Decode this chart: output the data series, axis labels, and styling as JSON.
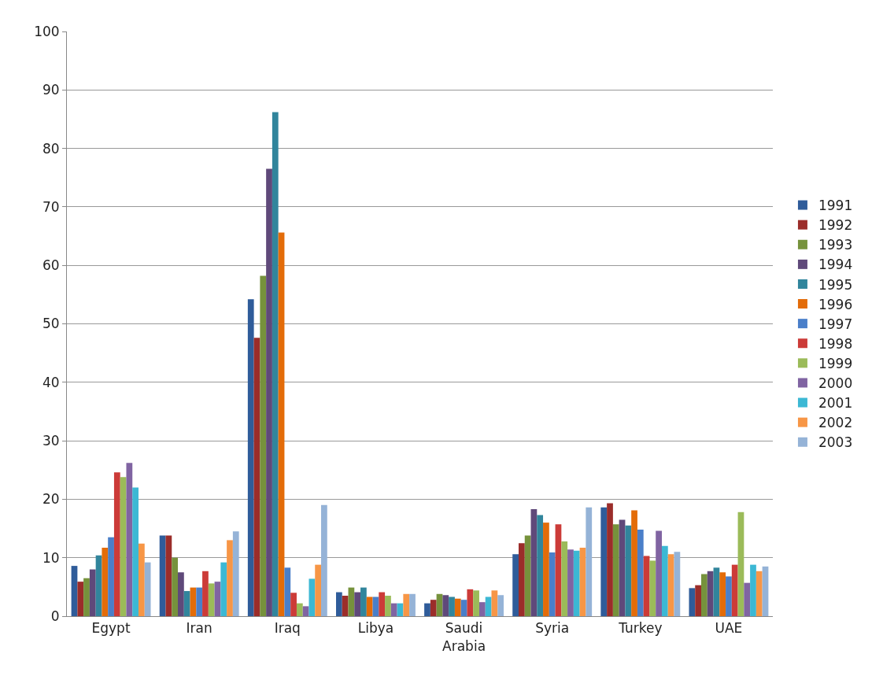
{
  "chart_data": {
    "type": "bar",
    "categories": [
      "Egypt",
      "Iran",
      "Iraq",
      "Libya",
      "Saudi Arabia",
      "Syria",
      "Turkey",
      "UAE"
    ],
    "series": [
      {
        "name": "1991",
        "color": "#2f5c9a",
        "values": [
          8.6,
          13.8,
          54.2,
          4.1,
          2.2,
          10.6,
          18.6,
          4.8
        ]
      },
      {
        "name": "1992",
        "color": "#9b2d2a",
        "values": [
          5.9,
          13.8,
          47.6,
          3.5,
          2.8,
          12.5,
          19.3,
          5.3
        ]
      },
      {
        "name": "1993",
        "color": "#76923c",
        "values": [
          6.5,
          10.0,
          58.2,
          4.9,
          3.8,
          13.8,
          15.7,
          7.2
        ]
      },
      {
        "name": "1994",
        "color": "#5f497a",
        "values": [
          8.0,
          7.5,
          76.5,
          4.1,
          3.6,
          18.3,
          16.5,
          7.7
        ]
      },
      {
        "name": "1995",
        "color": "#31859c",
        "values": [
          10.4,
          4.3,
          86.2,
          4.9,
          3.3,
          17.3,
          15.5,
          8.3
        ]
      },
      {
        "name": "1996",
        "color": "#e36c09",
        "values": [
          11.7,
          4.9,
          65.6,
          3.3,
          3.0,
          16.0,
          18.1,
          7.5
        ]
      },
      {
        "name": "1997",
        "color": "#4a7fc9",
        "values": [
          13.5,
          4.9,
          8.3,
          3.3,
          2.8,
          10.9,
          14.8,
          6.8
        ]
      },
      {
        "name": "1998",
        "color": "#cc3b38",
        "values": [
          24.6,
          7.7,
          4.0,
          4.1,
          4.6,
          15.7,
          10.3,
          8.8
        ]
      },
      {
        "name": "1999",
        "color": "#9bbb59",
        "values": [
          23.8,
          5.6,
          2.2,
          3.5,
          4.4,
          12.8,
          9.5,
          17.8
        ]
      },
      {
        "name": "2000",
        "color": "#8064a2",
        "values": [
          26.2,
          5.9,
          1.7,
          2.2,
          2.4,
          11.4,
          14.6,
          5.7
        ]
      },
      {
        "name": "2001",
        "color": "#3cb8d4",
        "values": [
          22.0,
          9.2,
          6.4,
          2.2,
          3.3,
          11.2,
          12.0,
          8.8
        ]
      },
      {
        "name": "2002",
        "color": "#f79646",
        "values": [
          12.4,
          13.0,
          8.8,
          3.8,
          4.4,
          11.7,
          10.6,
          7.7
        ]
      },
      {
        "name": "2003",
        "color": "#95b3d7",
        "values": [
          9.2,
          14.5,
          19.0,
          3.8,
          3.6,
          18.6,
          11.0,
          8.5
        ]
      }
    ],
    "ylim": [
      0,
      100
    ],
    "yticks": [
      0,
      10,
      20,
      30,
      40,
      50,
      60,
      70,
      80,
      90,
      100
    ],
    "grid": "y",
    "legend": "right"
  }
}
